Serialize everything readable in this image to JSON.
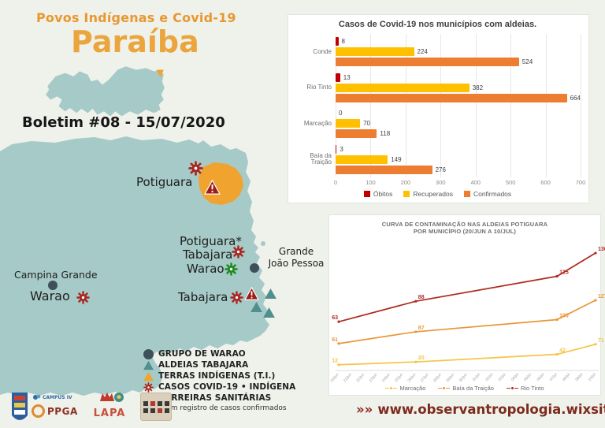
{
  "header": {
    "kicker": "Povos Indígenas e Covid-19",
    "title": "Paraíba",
    "bulletin": "Boletim #08 - 15/07/2020"
  },
  "map": {
    "labels": {
      "potiguara": "Potiguara",
      "potiguara_star": "Potiguara*",
      "tabajara_north": "Tabajara",
      "warao_jp": "Warao",
      "metro_line1": "Grande",
      "metro_line2": "João Pessoa",
      "campina_grande": "Campina Grande",
      "warao_campina": "Warao",
      "tabajara_south": "Tabajara"
    }
  },
  "legend": {
    "items": [
      {
        "icon": "dot-slate",
        "label": "GRUPO DE WARAO"
      },
      {
        "icon": "tri-teal",
        "label": "ALDEIAS TABAJARA"
      },
      {
        "icon": "tri-orange",
        "label": "TERRAS INDÍGENAS (T.I.)"
      },
      {
        "icon": "virus-red",
        "label": "CASOS COVID-19 • INDÍGENA"
      },
      {
        "icon": "warning",
        "label": "BARREIRAS SANITÁRIAS"
      }
    ],
    "footnote": "*Sem registro de casos confirmados"
  },
  "logos": {
    "ppga": "PPGA",
    "campus": "CAMPUS IV",
    "lapa": "LAPA"
  },
  "footer": {
    "arrows": "»»",
    "url": "www.observantropologia.wixsite.com/ufpb"
  },
  "colors": {
    "map_teal": "#A6CAC7",
    "accent_orange": "#EAA53C",
    "obitos": "#C00000",
    "recuperados": "#FFC000",
    "confirmados": "#ED7D31",
    "virus_red": "#A8261F",
    "virus_green": "#1B8A1B",
    "warning_red": "#9C1C15",
    "warao_slate": "#3E505A",
    "aldeia_teal": "#4F8F8D",
    "url_red": "#7E2A1E"
  },
  "chart_data": [
    {
      "type": "bar",
      "orientation": "horizontal",
      "title": "Casos de Covid-19 nos municípios com aldeias.",
      "categories": [
        "Conde",
        "Rio Tinto",
        "Marcação",
        "Baía da Traição"
      ],
      "series": [
        {
          "name": "Óbitos",
          "color": "#C00000",
          "values": [
            8,
            13,
            0,
            3
          ]
        },
        {
          "name": "Recuperados",
          "color": "#FFC000",
          "values": [
            224,
            382,
            70,
            149
          ]
        },
        {
          "name": "Confirmados",
          "color": "#ED7D31",
          "values": [
            524,
            664,
            118,
            276
          ]
        }
      ],
      "xlim": [
        0,
        700
      ],
      "xticks": [
        0,
        100,
        200,
        300,
        400,
        500,
        600,
        700
      ],
      "grid": true,
      "legend_position": "bottom"
    },
    {
      "type": "line",
      "stacked": true,
      "title": "CURVA DE CONTAMINAÇÃO NAS ALDEIAS POTIGUARA",
      "subtitle": "POR MUNICÍPIO (20/JUN A 10/JUL)",
      "x_labels": [
        "20/jun",
        "21/jun",
        "22/jun",
        "23/jun",
        "24/jun",
        "25/jun",
        "26/jun",
        "27/jun",
        "28/jun",
        "29/jun",
        "30/jun",
        "01/jul",
        "02/jul",
        "03/jul",
        "04/jul",
        "05/jul",
        "06/jul",
        "07/jul",
        "08/jul",
        "09/jul",
        "10/jul"
      ],
      "series": [
        {
          "name": "Marcação",
          "color": "#F5C445",
          "points": [
            {
              "date": "20/jun",
              "value": 12
            },
            {
              "date": "26/jun",
              "value": 20
            },
            {
              "date": "07/jul",
              "value": 42
            },
            {
              "date": "10/jul",
              "value": 71
            }
          ]
        },
        {
          "name": "Baía da Traição",
          "color": "#E8973A",
          "points": [
            {
              "date": "20/jun",
              "value": 61
            },
            {
              "date": "26/jun",
              "value": 87
            },
            {
              "date": "07/jul",
              "value": 100
            },
            {
              "date": "10/jul",
              "value": 127
            }
          ]
        },
        {
          "name": "Rio Tinto",
          "color": "#AE2B1F",
          "points": [
            {
              "date": "20/jun",
              "value": 63
            },
            {
              "date": "26/jun",
              "value": 88
            },
            {
              "date": "07/jul",
              "value": 125
            },
            {
              "date": "10/jul",
              "value": 136
            }
          ]
        }
      ],
      "grid": false,
      "legend_position": "bottom"
    }
  ]
}
